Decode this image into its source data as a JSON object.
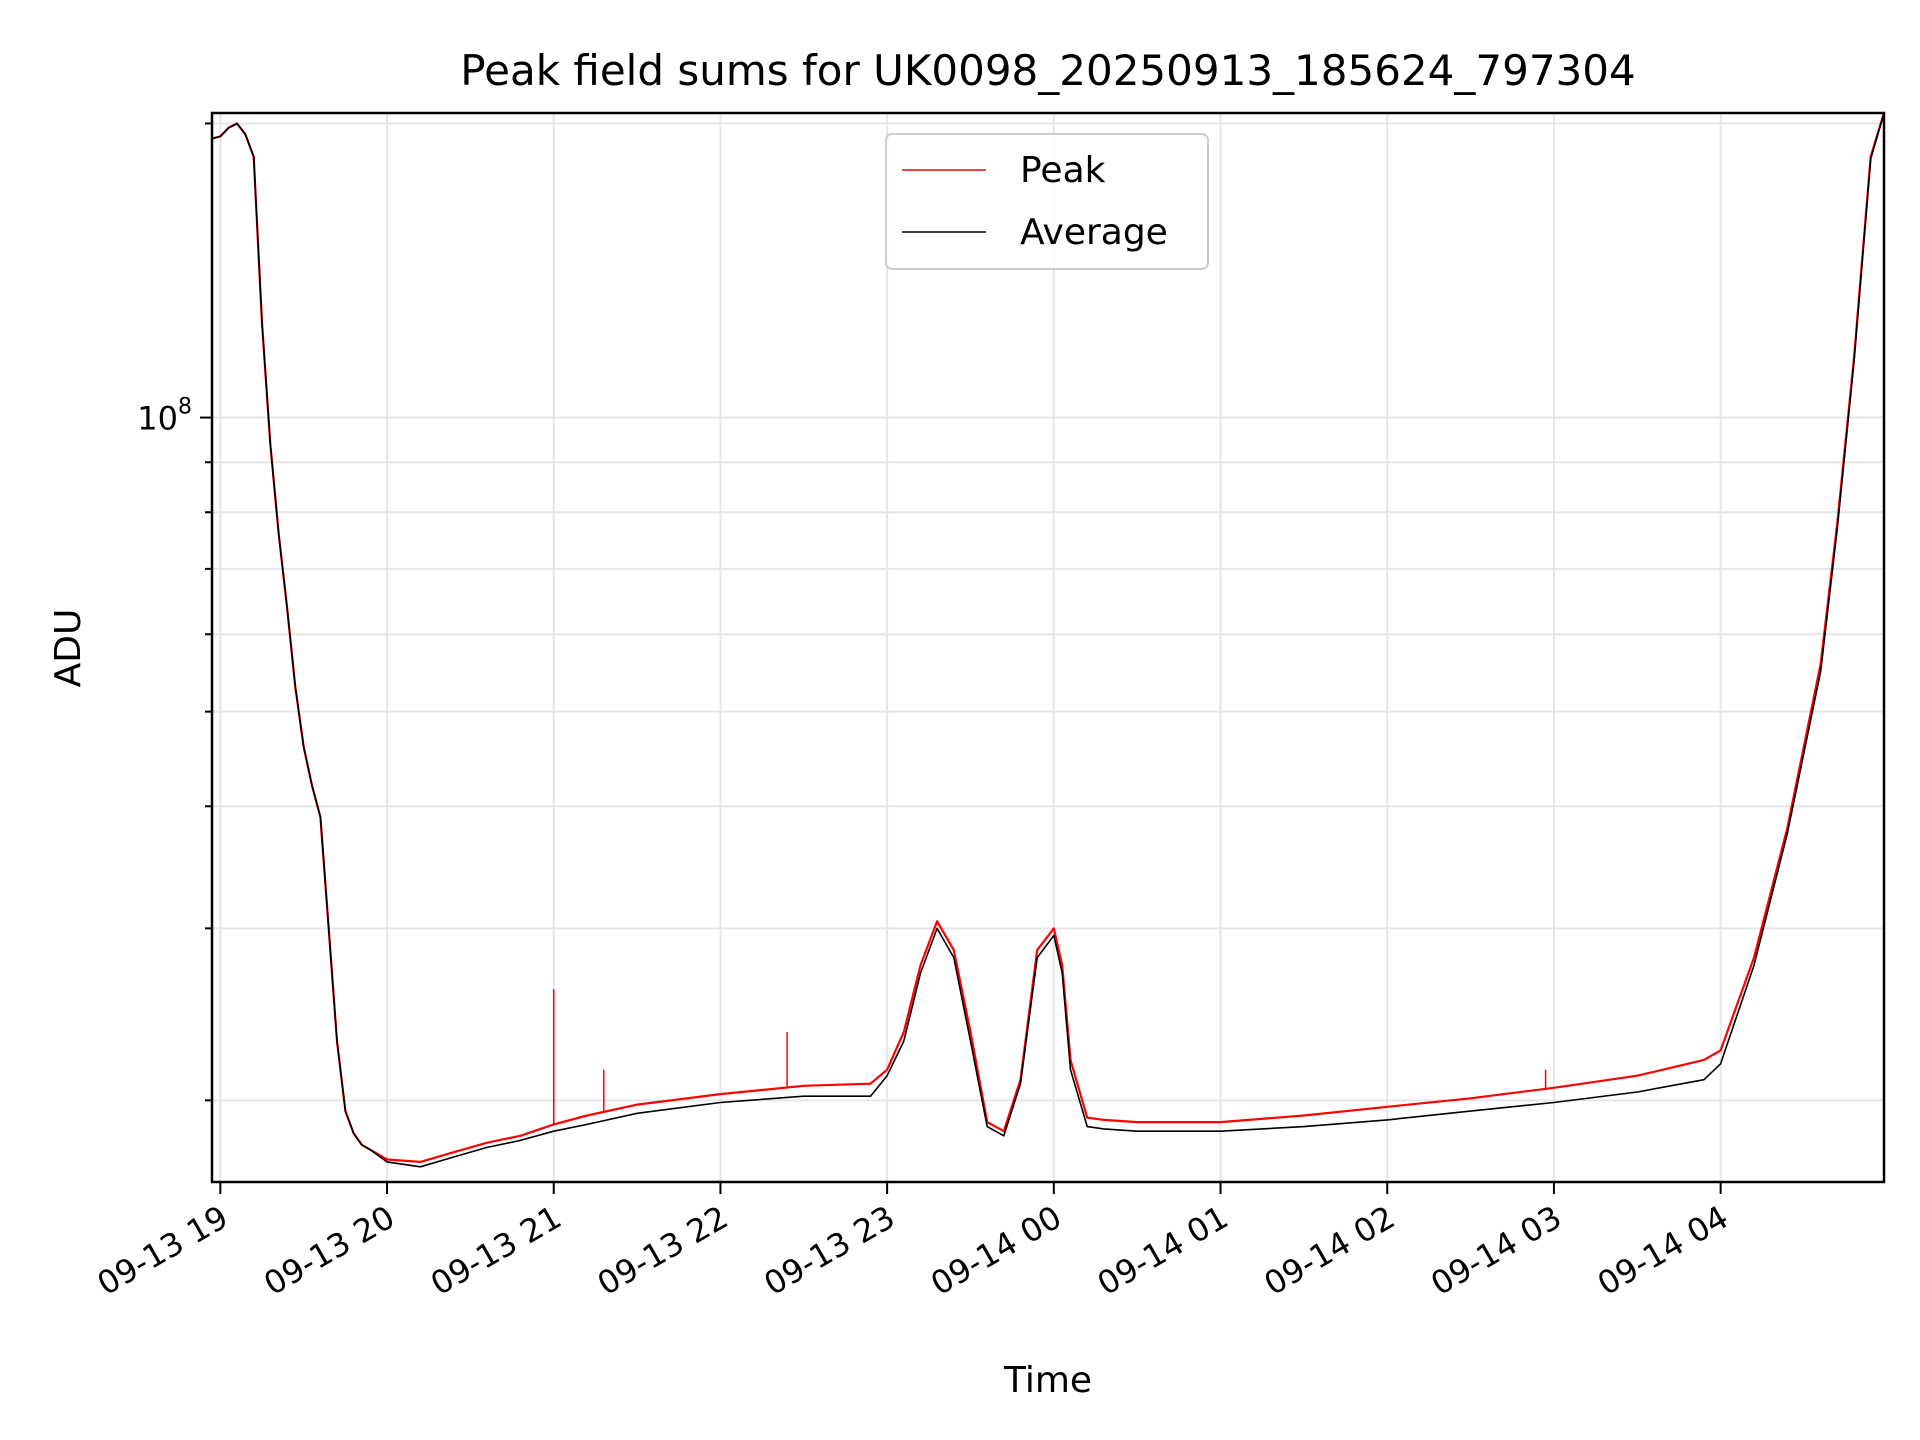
{
  "chart_data": {
    "type": "line",
    "title": "Peak field sums for UK0098_20250913_185624_797304",
    "xlabel": "Time",
    "ylabel": "ADU",
    "y_scale": "log",
    "ylim": [
      16500000,
      205000000
    ],
    "xlim_hours": [
      18.95,
      28.98
    ],
    "grid": true,
    "legend_position": "upper center",
    "x_ticks": [
      {
        "hour": 19,
        "label": "09-13 19"
      },
      {
        "hour": 20,
        "label": "09-13 20"
      },
      {
        "hour": 21,
        "label": "09-13 21"
      },
      {
        "hour": 22,
        "label": "09-13 22"
      },
      {
        "hour": 23,
        "label": "09-13 23"
      },
      {
        "hour": 24,
        "label": "09-14 00"
      },
      {
        "hour": 25,
        "label": "09-14 01"
      },
      {
        "hour": 26,
        "label": "09-14 02"
      },
      {
        "hour": 27,
        "label": "09-14 03"
      },
      {
        "hour": 28,
        "label": "09-14 04"
      }
    ],
    "y_major_tick": {
      "value": 100000000,
      "base": "10",
      "exponent": "8"
    },
    "y_minor_ticks": [
      20000000,
      30000000,
      40000000,
      50000000,
      60000000,
      70000000,
      80000000,
      90000000,
      200000000
    ],
    "series": [
      {
        "name": "Peak",
        "color": "#ff0000",
        "x_hours": [
          18.95,
          19.0,
          19.05,
          19.1,
          19.15,
          19.2,
          19.25,
          19.3,
          19.35,
          19.4,
          19.45,
          19.5,
          19.55,
          19.6,
          19.65,
          19.7,
          19.75,
          19.8,
          19.85,
          19.9,
          20.0,
          20.2,
          20.4,
          20.6,
          20.8,
          21.0,
          21.2,
          21.5,
          22.0,
          22.5,
          22.9,
          23.0,
          23.1,
          23.2,
          23.3,
          23.4,
          23.5,
          23.6,
          23.7,
          23.8,
          23.9,
          24.0,
          24.05,
          24.1,
          24.2,
          24.3,
          24.5,
          25.0,
          25.5,
          26.0,
          26.5,
          27.0,
          27.5,
          27.9,
          28.0,
          28.2,
          28.4,
          28.6,
          28.7,
          28.8,
          28.9,
          28.98
        ],
        "values": [
          193000000,
          194000000,
          198000000,
          200000000,
          195000000,
          185000000,
          125000000,
          94000000,
          76000000,
          64000000,
          53000000,
          46000000,
          42000000,
          39000000,
          30000000,
          23000000,
          19500000,
          18500000,
          18000000,
          17800000,
          17400000,
          17300000,
          17700000,
          18100000,
          18400000,
          18900000,
          19300000,
          19800000,
          20300000,
          20700000,
          20800000,
          21500000,
          23500000,
          27500000,
          30500000,
          28500000,
          23500000,
          19000000,
          18600000,
          21000000,
          28500000,
          30000000,
          27500000,
          22000000,
          19200000,
          19100000,
          19000000,
          19000000,
          19300000,
          19700000,
          20100000,
          20600000,
          21200000,
          22000000,
          22500000,
          28000000,
          38000000,
          56000000,
          78000000,
          115000000,
          185000000,
          205000000
        ],
        "spike_x_hours": [
          21.0,
          21.3,
          22.4,
          26.95
        ],
        "spike_values": [
          26000000,
          21500000,
          23500000,
          21500000
        ]
      },
      {
        "name": "Average",
        "color": "#000000",
        "x_hours": [
          18.95,
          19.0,
          19.05,
          19.1,
          19.15,
          19.2,
          19.25,
          19.3,
          19.35,
          19.4,
          19.45,
          19.5,
          19.55,
          19.6,
          19.65,
          19.7,
          19.75,
          19.8,
          19.85,
          19.9,
          20.0,
          20.2,
          20.4,
          20.6,
          20.8,
          21.0,
          21.2,
          21.5,
          22.0,
          22.5,
          22.9,
          23.0,
          23.1,
          23.2,
          23.3,
          23.4,
          23.5,
          23.6,
          23.7,
          23.8,
          23.9,
          24.0,
          24.05,
          24.1,
          24.2,
          24.3,
          24.5,
          25.0,
          25.5,
          26.0,
          26.5,
          27.0,
          27.5,
          27.9,
          28.0,
          28.2,
          28.4,
          28.6,
          28.7,
          28.8,
          28.9,
          28.98
        ],
        "values": [
          193000000,
          194000000,
          198000000,
          200000000,
          195000000,
          185000000,
          125000000,
          94000000,
          76000000,
          64000000,
          53000000,
          46000000,
          42000000,
          39000000,
          30000000,
          23000000,
          19500000,
          18500000,
          18000000,
          17800000,
          17300000,
          17100000,
          17500000,
          17900000,
          18200000,
          18600000,
          18900000,
          19400000,
          19900000,
          20200000,
          20200000,
          21200000,
          23000000,
          27000000,
          30000000,
          28000000,
          23000000,
          18800000,
          18400000,
          20800000,
          28000000,
          29500000,
          27000000,
          21500000,
          18800000,
          18700000,
          18600000,
          18600000,
          18800000,
          19100000,
          19500000,
          19900000,
          20400000,
          21000000,
          21800000,
          27500000,
          37500000,
          55000000,
          77000000,
          114000000,
          184000000,
          205000000
        ]
      }
    ]
  }
}
